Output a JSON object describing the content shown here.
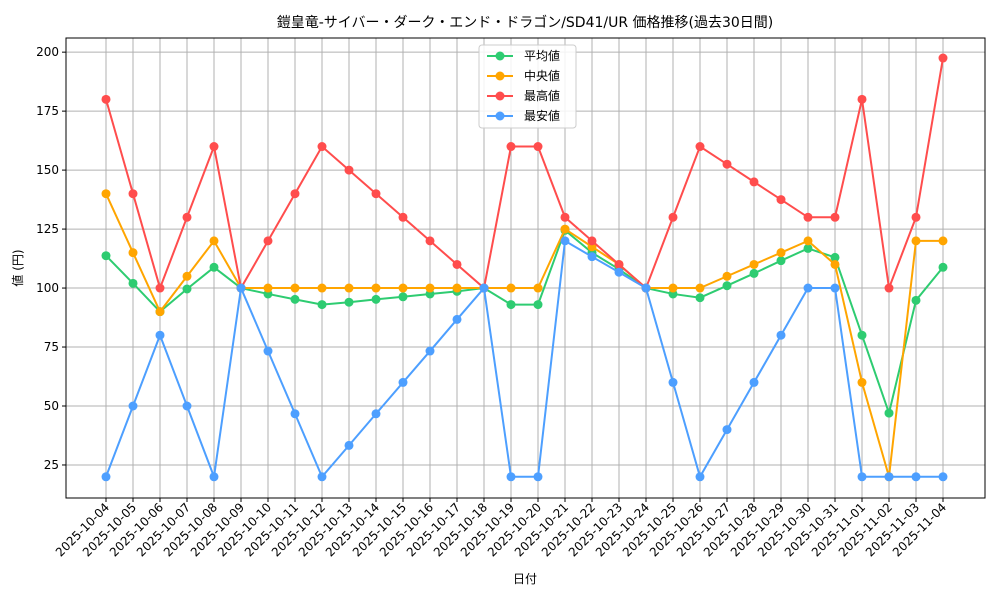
{
  "chart_data": {
    "type": "line",
    "title": "鎧皇竜-サイバー・ダーク・エンド・ドラゴン/SD41/UR 価格推移(過去30日間)",
    "xlabel": "日付",
    "ylabel": "値 (円)",
    "ylim": [
      11,
      206
    ],
    "yticks": [
      25,
      50,
      75,
      100,
      125,
      150,
      175,
      200
    ],
    "grid": true,
    "legend_position": "top-center",
    "x": [
      "2025-10-04",
      "2025-10-05",
      "2025-10-06",
      "2025-10-07",
      "2025-10-08",
      "2025-10-09",
      "2025-10-10",
      "2025-10-11",
      "2025-10-12",
      "2025-10-13",
      "2025-10-14",
      "2025-10-15",
      "2025-10-16",
      "2025-10-17",
      "2025-10-18",
      "2025-10-19",
      "2025-10-20",
      "2025-10-21",
      "2025-10-22",
      "2025-10-23",
      "2025-10-24",
      "2025-10-25",
      "2025-10-26",
      "2025-10-27",
      "2025-10-28",
      "2025-10-29",
      "2025-10-30",
      "2025-10-31",
      "2025-11-01",
      "2025-11-02",
      "2025-11-03",
      "2025-11-04"
    ],
    "series": [
      {
        "name": "平均値",
        "color": "#2ecc71",
        "values": [
          113.7,
          102,
          90,
          99.6,
          108.8,
          100,
          97.5,
          95.2,
          93,
          94,
          95.2,
          96.3,
          97.5,
          98.6,
          100,
          93,
          93,
          124.5,
          115,
          108,
          100,
          97.5,
          95.9,
          101,
          106.2,
          111.6,
          116.8,
          113,
          80,
          47,
          94.8,
          108.8
        ]
      },
      {
        "name": "中央値",
        "color": "#ffa500",
        "values": [
          140,
          115,
          90,
          105,
          120,
          100,
          100,
          100,
          100,
          100,
          100,
          100,
          100,
          100,
          100,
          100,
          100,
          125,
          117.5,
          110,
          100,
          100,
          100,
          105,
          110,
          115,
          120,
          110,
          60,
          20,
          120,
          120
        ]
      },
      {
        "name": "最高値",
        "color": "#ff4d4d",
        "values": [
          180,
          140,
          100,
          130,
          160,
          100,
          120,
          140,
          160,
          150,
          140,
          130,
          120,
          110,
          100,
          160,
          160,
          130,
          120,
          110,
          100,
          130,
          160,
          152.5,
          145,
          137.5,
          130,
          130,
          180,
          100,
          130,
          197.5
        ]
      },
      {
        "name": "最安値",
        "color": "#4d9fff",
        "values": [
          20,
          50,
          80,
          50,
          20,
          100,
          73.3,
          46.7,
          20,
          33.3,
          46.7,
          60,
          73.3,
          86.7,
          100,
          20,
          20,
          120,
          113.3,
          106.7,
          100,
          60,
          20,
          40,
          60,
          80,
          100,
          100,
          20,
          20,
          20,
          20
        ]
      }
    ]
  }
}
